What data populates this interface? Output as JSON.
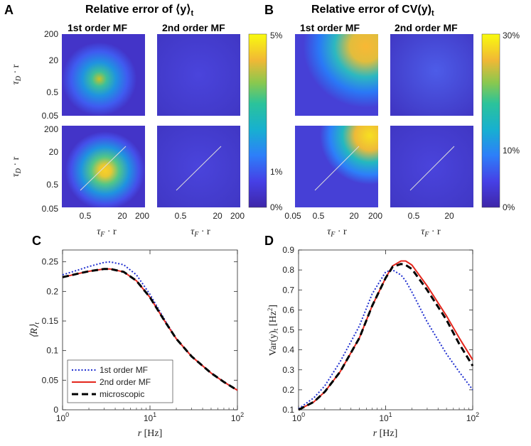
{
  "panel_letters": {
    "A": "A",
    "B": "B",
    "C": "C",
    "D": "D"
  },
  "titles": {
    "A_prefix": "Relative error of ",
    "A_math": "⟨y⟩",
    "A_sub": "t",
    "B_prefix": "Relative error of ",
    "B_math": "CV(y)",
    "B_sub": "t"
  },
  "subtitles": {
    "first": "1st order MF",
    "second": "2nd order MF"
  },
  "heatmap_axes": {
    "y_ticks": [
      "200",
      "20",
      "0.5",
      "0.05"
    ],
    "y_label": "τ",
    "y_label_sub": "D",
    "y_label_tail": " · r",
    "x_ticks_A": [
      "0.5",
      "20",
      "200"
    ],
    "x_ticks_A2": [
      "0.5",
      "20",
      "200"
    ],
    "x_ticks_B": [
      "0.05",
      "0.5",
      "20",
      "200"
    ],
    "x_ticks_B2": [
      "0.5",
      "20"
    ],
    "x_label": "τ",
    "x_label_sub": "F",
    "x_label_tail": " · r"
  },
  "colorbar_A": {
    "ticks": [
      "5%",
      "1%",
      "0%"
    ]
  },
  "colorbar_B": {
    "ticks": [
      "30%",
      "10%",
      "0%"
    ]
  },
  "colors": {
    "mf1": "#1f2fd0",
    "mf2": "#e4261c",
    "micro": "#000000",
    "parula_low": "#3e26a8",
    "parula_high": "#f9fb0e"
  },
  "chart_data": [
    {
      "id": "C",
      "type": "line",
      "xscale": "log",
      "xlim": [
        1,
        100
      ],
      "ylim": [
        0,
        0.27
      ],
      "xticks": [
        "10^0",
        "10^1",
        "10^2"
      ],
      "yticks": [
        "0",
        "0.05",
        "0.1",
        "0.15",
        "0.2",
        "0.25"
      ],
      "xlabel": "r [Hz]",
      "ylabel": "⟨R⟩t",
      "legend": {
        "position": "bottom-left",
        "entries": [
          "1st order MF",
          "2nd order MF",
          "microscopic"
        ]
      },
      "x": [
        1,
        1.5,
        2,
        3,
        3.5,
        5,
        7,
        10,
        15,
        20,
        30,
        50,
        70,
        100
      ],
      "series": [
        {
          "name": "1st order MF",
          "style": "dotted",
          "values": [
            0.228,
            0.236,
            0.242,
            0.249,
            0.25,
            0.245,
            0.228,
            0.195,
            0.15,
            0.12,
            0.09,
            0.062,
            0.047,
            0.033
          ]
        },
        {
          "name": "2nd order MF",
          "style": "solid",
          "values": [
            0.224,
            0.23,
            0.234,
            0.238,
            0.238,
            0.233,
            0.218,
            0.19,
            0.148,
            0.12,
            0.09,
            0.062,
            0.047,
            0.033
          ]
        },
        {
          "name": "microscopic",
          "style": "dashed",
          "values": [
            0.224,
            0.23,
            0.234,
            0.238,
            0.238,
            0.233,
            0.218,
            0.19,
            0.148,
            0.12,
            0.09,
            0.062,
            0.047,
            0.033
          ]
        }
      ]
    },
    {
      "id": "D",
      "type": "line",
      "xscale": "log",
      "xlim": [
        1,
        100
      ],
      "ylim": [
        0.1,
        0.9
      ],
      "xticks": [
        "10^0",
        "10^1",
        "10^2"
      ],
      "yticks": [
        "0.1",
        "0.2",
        "0.3",
        "0.4",
        "0.5",
        "0.6",
        "0.7",
        "0.8",
        "0.9"
      ],
      "xlabel": "r [Hz]",
      "ylabel": "Var(y)t [Hz²]",
      "x": [
        1,
        1.5,
        2,
        3,
        5,
        7,
        10,
        12,
        15,
        17,
        20,
        30,
        50,
        70,
        100
      ],
      "series": [
        {
          "name": "1st order MF",
          "style": "dotted",
          "values": [
            0.105,
            0.16,
            0.22,
            0.34,
            0.52,
            0.68,
            0.79,
            0.8,
            0.775,
            0.745,
            0.69,
            0.54,
            0.38,
            0.29,
            0.2
          ]
        },
        {
          "name": "2nd order MF",
          "style": "solid",
          "values": [
            0.1,
            0.14,
            0.19,
            0.29,
            0.46,
            0.62,
            0.76,
            0.82,
            0.845,
            0.845,
            0.825,
            0.72,
            0.57,
            0.46,
            0.35
          ]
        },
        {
          "name": "microscopic",
          "style": "dashed",
          "values": [
            0.1,
            0.14,
            0.19,
            0.29,
            0.46,
            0.62,
            0.76,
            0.815,
            0.83,
            0.825,
            0.805,
            0.7,
            0.55,
            0.43,
            0.32
          ]
        }
      ]
    }
  ]
}
